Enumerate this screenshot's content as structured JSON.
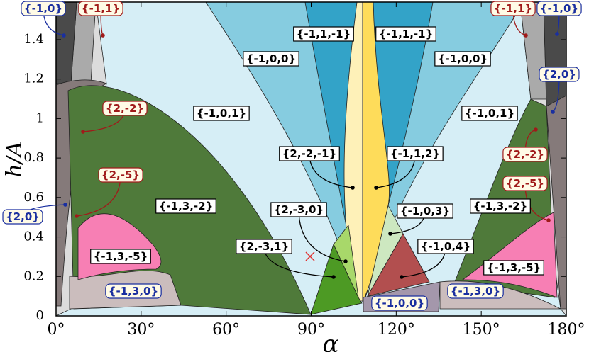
{
  "chart_data": {
    "type": "phase-diagram",
    "xlabel": "α",
    "ylabel": "h/A",
    "xlim": [
      0,
      180
    ],
    "ylim": [
      0,
      1.59
    ],
    "xticks": [
      {
        "value": 0,
        "label": "0°"
      },
      {
        "value": 30,
        "label": "30°"
      },
      {
        "value": 60,
        "label": "60°"
      },
      {
        "value": 90,
        "label": "90°"
      },
      {
        "value": 120,
        "label": "120°"
      },
      {
        "value": 150,
        "label": "150°"
      },
      {
        "value": 180,
        "label": "180°"
      }
    ],
    "yticks": [
      0,
      0.2,
      0.4,
      0.6,
      0.8,
      1,
      1.2,
      1.4
    ],
    "annotations": [
      {
        "text": "{-1,0}",
        "color": "#1a2fa0"
      },
      {
        "text": "{-1,1}",
        "color": "#a01a1a"
      },
      {
        "text": "{-1,1}",
        "color": "#a01a1a"
      },
      {
        "text": "{-1,0}",
        "color": "#1a2fa0"
      },
      {
        "text": "{2,0}",
        "color": "#1a2fa0"
      },
      {
        "text": "{2,-2}",
        "color": "#a01a1a"
      },
      {
        "text": "{2,-5}",
        "color": "#a01a1a"
      },
      {
        "text": "{2,0}",
        "color": "#1a2fa0"
      },
      {
        "text": "{2,-2}",
        "color": "#a01a1a"
      },
      {
        "text": "{2,-5}",
        "color": "#a01a1a"
      },
      {
        "text": "{-1,3,0}",
        "color": "#1a2fa0"
      },
      {
        "text": "{-1,3,0}",
        "color": "#1a2fa0"
      },
      {
        "text": "{-1,0,0}",
        "color": "#1a2fa0"
      },
      {
        "text": "{-1,1,-1}",
        "color": "#000000"
      },
      {
        "text": "{-1,1,-1}",
        "color": "#000000"
      },
      {
        "text": "{-1,0,0}",
        "color": "#000000"
      },
      {
        "text": "{-1,0,0}",
        "color": "#000000"
      },
      {
        "text": "{-1,0,1}",
        "color": "#000000"
      },
      {
        "text": "{-1,0,1}",
        "color": "#000000"
      },
      {
        "text": "{-1,3,-2}",
        "color": "#000000"
      },
      {
        "text": "{-1,3,-2}",
        "color": "#000000"
      },
      {
        "text": "{-1,3,-5}",
        "color": "#000000"
      },
      {
        "text": "{-1,3,-5}",
        "color": "#000000"
      },
      {
        "text": "{2,-2,-1}",
        "color": "#000000"
      },
      {
        "text": "{-1,1,2}",
        "color": "#000000"
      },
      {
        "text": "{2,-3,0}",
        "color": "#000000"
      },
      {
        "text": "{-1,0,3}",
        "color": "#000000"
      },
      {
        "text": "{2,-3,1}",
        "color": "#000000"
      },
      {
        "text": "{-1,0,4}",
        "color": "#000000"
      }
    ]
  }
}
